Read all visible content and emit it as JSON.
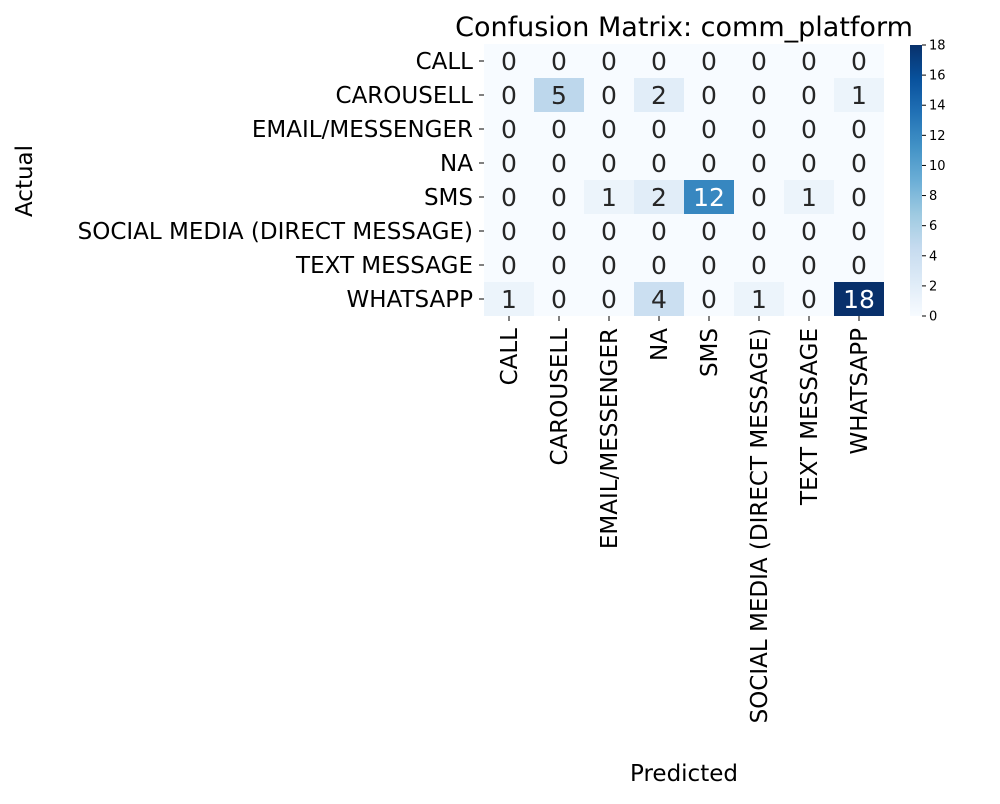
{
  "chart_data": {
    "type": "heatmap",
    "title": "Confusion Matrix: comm_platform",
    "xlabel": "Predicted",
    "ylabel": "Actual",
    "x_categories": [
      "CALL",
      "CAROUSELL",
      "EMAIL/MESSENGER",
      "NA",
      "SMS",
      "SOCIAL MEDIA (DIRECT MESSAGE)",
      "TEXT MESSAGE",
      "WHATSAPP"
    ],
    "y_categories": [
      "CALL",
      "CAROUSELL",
      "EMAIL/MESSENGER",
      "NA",
      "SMS",
      "SOCIAL MEDIA (DIRECT MESSAGE)",
      "TEXT MESSAGE",
      "WHATSAPP"
    ],
    "values": [
      [
        0,
        0,
        0,
        0,
        0,
        0,
        0,
        0
      ],
      [
        0,
        5,
        0,
        2,
        0,
        0,
        0,
        1
      ],
      [
        0,
        0,
        0,
        0,
        0,
        0,
        0,
        0
      ],
      [
        0,
        0,
        0,
        0,
        0,
        0,
        0,
        0
      ],
      [
        0,
        0,
        1,
        2,
        12,
        0,
        1,
        0
      ],
      [
        0,
        0,
        0,
        0,
        0,
        0,
        0,
        0
      ],
      [
        0,
        0,
        0,
        0,
        0,
        0,
        0,
        0
      ],
      [
        1,
        0,
        0,
        4,
        0,
        1,
        0,
        18
      ]
    ],
    "colorbar": {
      "min": 0,
      "max": 18,
      "ticks": [
        0,
        2,
        4,
        6,
        8,
        10,
        12,
        14,
        16,
        18
      ]
    },
    "colormap": "Blues"
  }
}
